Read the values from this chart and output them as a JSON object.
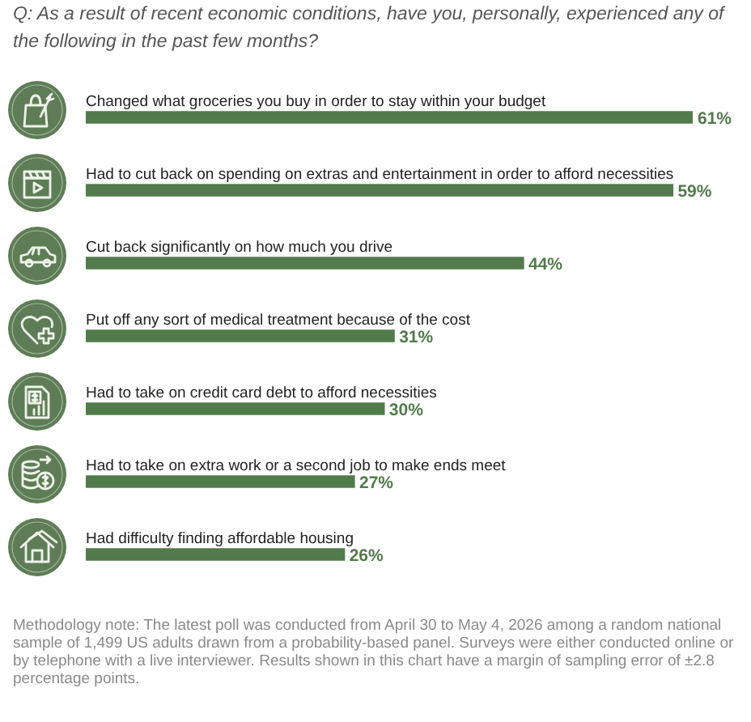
{
  "chart_data": {
    "type": "bar",
    "orientation": "horizontal",
    "title": "Q: As a result of recent economic conditions, have you, personally, experienced any of the following in the past few months?",
    "categories": [
      "Changed what groceries you buy in order to stay within your budget",
      "Had to cut back on spending on extras and entertainment in order to afford necessities",
      "Cut back significantly on how much you drive",
      "Put off any sort of medical treatment because of the cost",
      "Had to take on credit card debt to afford necessities",
      "Had to take on extra work or a second job to make ends meet",
      "Had difficulty finding affordable housing"
    ],
    "values": [
      61,
      59,
      44,
      31,
      30,
      27,
      26
    ],
    "value_labels": [
      "61%",
      "59%",
      "44%",
      "31%",
      "30%",
      "27%",
      "26%"
    ],
    "color": "#527b4b",
    "tick_labels": false,
    "annotations": [
      "Methodology note: The latest poll was conducted from April 30 to May 4, 2026 among a random national sample of 1,499 US adults drawn from a probability-based panel. Surveys were either conducted online or by telephone with a live interviewer. Results shown in this chart have a margin of sampling error of ±2.8 percentage points."
    ]
  }
}
